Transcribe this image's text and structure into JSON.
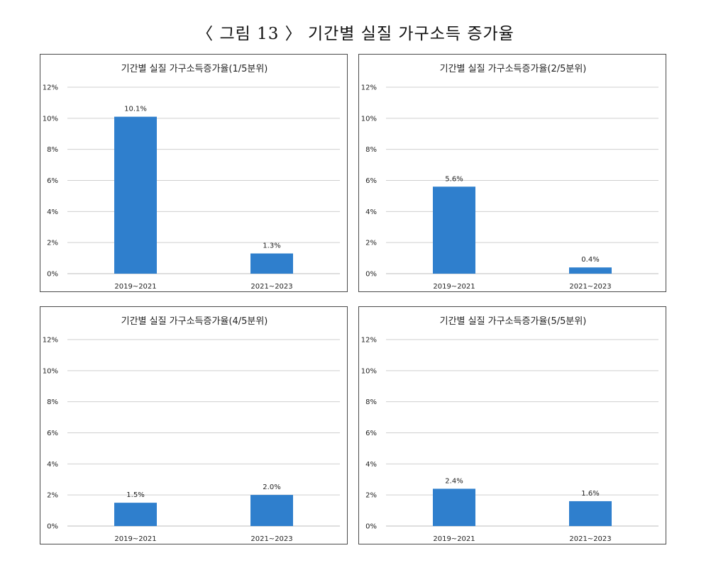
{
  "figure_title": "〈 그림 13 〉 기간별 실질 가구소득 증가율",
  "colors": {
    "bar": "#2f7fcd",
    "grid": "#cfcfcf"
  },
  "chart_data": [
    {
      "type": "bar",
      "title": "기간별 실질 가구소득증가율(1/5분위)",
      "categories": [
        "2019~2021",
        "2021~2023"
      ],
      "values": [
        10.1,
        1.3
      ],
      "data_labels": [
        "10.1%",
        "1.3%"
      ],
      "yticks": [
        "0%",
        "2%",
        "4%",
        "6%",
        "8%",
        "10%",
        "12%"
      ],
      "ylim": [
        0,
        12
      ],
      "grid": true,
      "legend": "none"
    },
    {
      "type": "bar",
      "title": "기간별 실질 가구소득증가율(2/5분위)",
      "categories": [
        "2019~2021",
        "2021~2023"
      ],
      "values": [
        5.6,
        0.4
      ],
      "data_labels": [
        "5.6%",
        "0.4%"
      ],
      "yticks": [
        "0%",
        "2%",
        "4%",
        "6%",
        "8%",
        "10%",
        "12%"
      ],
      "ylim": [
        0,
        12
      ],
      "grid": true,
      "legend": "none"
    },
    {
      "type": "bar",
      "title": "기간별 실질 가구소득증가율(4/5분위)",
      "categories": [
        "2019~2021",
        "2021~2023"
      ],
      "values": [
        1.5,
        2.0
      ],
      "data_labels": [
        "1.5%",
        "2.0%"
      ],
      "yticks": [
        "0%",
        "2%",
        "4%",
        "6%",
        "8%",
        "10%",
        "12%"
      ],
      "ylim": [
        0,
        12
      ],
      "grid": true,
      "legend": "none"
    },
    {
      "type": "bar",
      "title": "기간별 실질 가구소득증가율(5/5분위)",
      "categories": [
        "2019~2021",
        "2021~2023"
      ],
      "values": [
        2.4,
        1.6
      ],
      "data_labels": [
        "2.4%",
        "1.6%"
      ],
      "yticks": [
        "0%",
        "2%",
        "4%",
        "6%",
        "8%",
        "10%",
        "12%"
      ],
      "ylim": [
        0,
        12
      ],
      "grid": true,
      "legend": "none"
    }
  ]
}
